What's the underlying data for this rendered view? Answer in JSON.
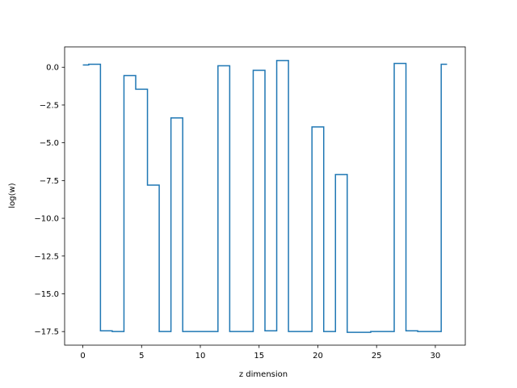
{
  "chart_data": {
    "type": "line",
    "drawstyle": "steps-mid",
    "title": "",
    "xlabel": "z dimension",
    "ylabel": "log(w)",
    "xlim": [
      -1.55,
      32.55
    ],
    "ylim": [
      -18.4,
      1.35
    ],
    "xticks": [
      0,
      5,
      10,
      15,
      20,
      25,
      30
    ],
    "xtick_labels": [
      "0",
      "5",
      "10",
      "15",
      "20",
      "25",
      "30"
    ],
    "yticks": [
      0.0,
      -2.5,
      -5.0,
      -7.5,
      -10.0,
      -12.5,
      -15.0,
      -17.5
    ],
    "ytick_labels": [
      "0.0",
      "−2.5",
      "−5.0",
      "−7.5",
      "−10.0",
      "−12.5",
      "−15.0",
      "−17.5"
    ],
    "grid": false,
    "legend": "none",
    "series": [
      {
        "color": "#1f77b4",
        "x": [
          0,
          1,
          2,
          3,
          4,
          5,
          6,
          7,
          8,
          9,
          10,
          11,
          12,
          13,
          14,
          15,
          16,
          17,
          18,
          19,
          20,
          21,
          22,
          23,
          24,
          25,
          26,
          27,
          28,
          29,
          30,
          31
        ],
        "y": [
          0.15,
          0.2,
          -17.45,
          -17.5,
          -0.55,
          -1.45,
          -7.8,
          -17.5,
          -3.35,
          -17.5,
          -17.5,
          -17.5,
          0.1,
          -17.5,
          -17.5,
          -0.2,
          -17.45,
          0.45,
          -17.5,
          -17.5,
          -3.95,
          -17.5,
          -7.1,
          -17.55,
          -17.55,
          -17.5,
          -17.5,
          0.25,
          -17.45,
          -17.5,
          -17.5,
          0.2
        ]
      }
    ]
  }
}
